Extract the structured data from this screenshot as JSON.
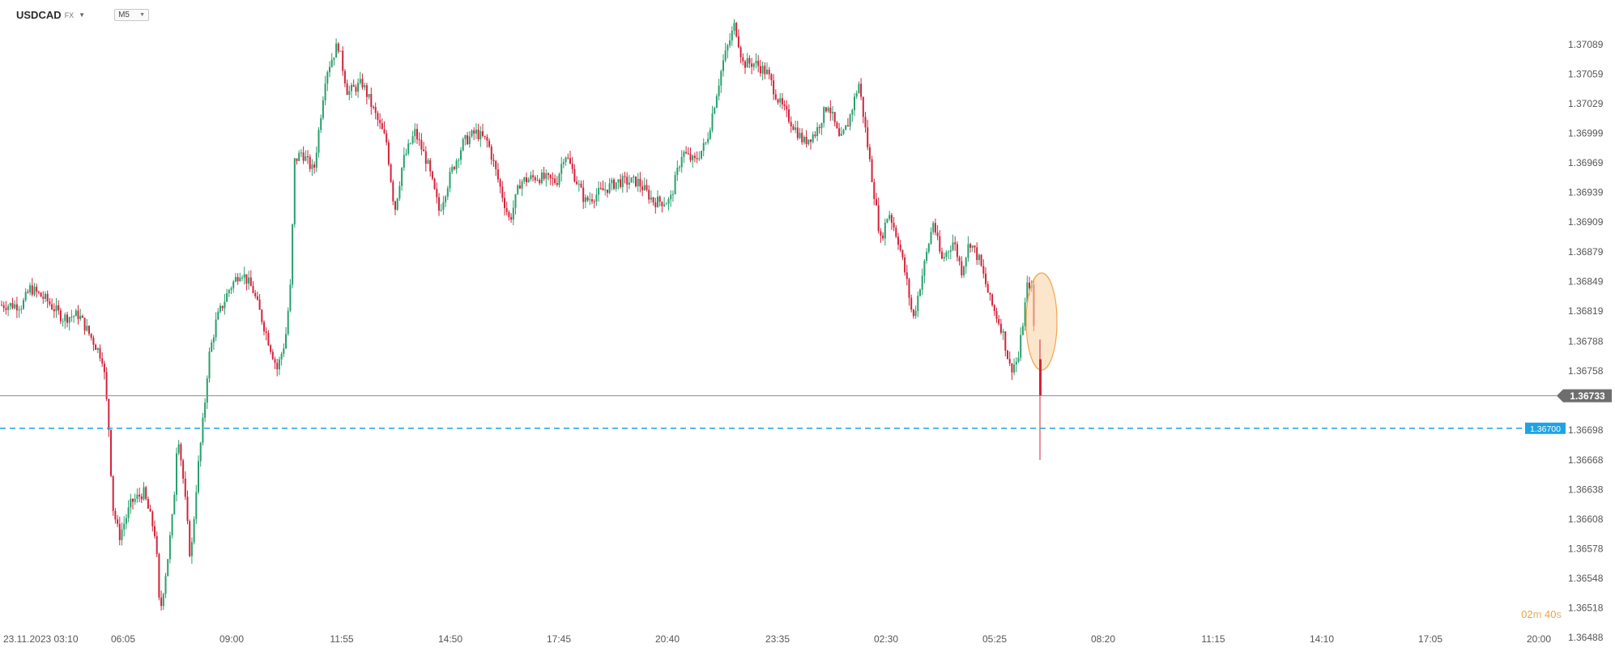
{
  "header": {
    "symbol": "USDCAD",
    "market": "FX",
    "timeframe": "M5"
  },
  "countdown": {
    "minutes": "02",
    "minutes_unit": "m",
    "seconds": "40",
    "seconds_unit": "s"
  },
  "colors": {
    "up": "#27a06b",
    "down": "#d3233b",
    "price_line": "#8c8c8c",
    "price_tag": "#6e6e6e",
    "level_line": "#1ea3e6",
    "level_tag": "#1ea3e6",
    "highlight_fill": "#f9d6a8",
    "highlight_stroke": "#f3a54d"
  },
  "chart_data": {
    "type": "candlestick",
    "instrument": "USDCAD",
    "timeframe": "M5",
    "y_ticks": [
      "1.37089",
      "1.37059",
      "1.37029",
      "1.36999",
      "1.36969",
      "1.36939",
      "1.36909",
      "1.36879",
      "1.36849",
      "1.36819",
      "1.36788",
      "1.36758",
      "1.36698",
      "1.36668",
      "1.36638",
      "1.36608",
      "1.36578",
      "1.36548",
      "1.36518",
      "1.36488"
    ],
    "ylim": [
      1.36488,
      1.3712
    ],
    "x_ticks": [
      "23.11.2023  03:10",
      "06:05",
      "09:00",
      "11:55",
      "14:50",
      "17:45",
      "20:40",
      "23:35",
      "02:30",
      "05:25",
      "08:20",
      "11:15",
      "14:10",
      "17:05",
      "20:00"
    ],
    "current_price": {
      "label": "1.36733",
      "value": 1.36733
    },
    "level": {
      "label": "1.36700",
      "value": 1.367
    },
    "highlight": "ellipse around the last candle",
    "path_anchors": [
      [
        0,
        1.36825
      ],
      [
        30,
        1.36825
      ],
      [
        40,
        1.36842
      ],
      [
        60,
        1.3683
      ],
      [
        80,
        1.36812
      ],
      [
        100,
        1.36815
      ],
      [
        110,
        1.368
      ],
      [
        130,
        1.3677
      ],
      [
        137,
        1.367
      ],
      [
        142,
        1.3662
      ],
      [
        150,
        1.3659
      ],
      [
        165,
        1.36625
      ],
      [
        180,
        1.36635
      ],
      [
        195,
        1.3659
      ],
      [
        200,
        1.3651
      ],
      [
        210,
        1.3657
      ],
      [
        217,
        1.3662
      ],
      [
        222,
        1.367
      ],
      [
        230,
        1.3664
      ],
      [
        238,
        1.36565
      ],
      [
        246,
        1.3665
      ],
      [
        255,
        1.3672
      ],
      [
        260,
        1.3677
      ],
      [
        270,
        1.3681
      ],
      [
        285,
        1.3684
      ],
      [
        300,
        1.3686
      ],
      [
        315,
        1.3684
      ],
      [
        330,
        1.368
      ],
      [
        345,
        1.3676
      ],
      [
        355,
        1.3679
      ],
      [
        362,
        1.3685
      ],
      [
        366,
        1.3697
      ],
      [
        375,
        1.3698
      ],
      [
        390,
        1.3696
      ],
      [
        405,
        1.3706
      ],
      [
        420,
        1.3709
      ],
      [
        432,
        1.3704
      ],
      [
        450,
        1.3705
      ],
      [
        465,
        1.3702
      ],
      [
        480,
        1.3699
      ],
      [
        490,
        1.3692
      ],
      [
        500,
        1.3697
      ],
      [
        515,
        1.37
      ],
      [
        530,
        1.3697
      ],
      [
        545,
        1.3692
      ],
      [
        560,
        1.3696
      ],
      [
        575,
        1.3699
      ],
      [
        590,
        1.37
      ],
      [
        605,
        1.3699
      ],
      [
        615,
        1.3696
      ],
      [
        625,
        1.3693
      ],
      [
        632,
        1.3691
      ],
      [
        645,
        1.3695
      ],
      [
        665,
        1.36955
      ],
      [
        690,
        1.3695
      ],
      [
        700,
        1.3698
      ],
      [
        710,
        1.3696
      ],
      [
        725,
        1.3693
      ],
      [
        745,
        1.3694
      ],
      [
        765,
        1.3695
      ],
      [
        790,
        1.3695
      ],
      [
        810,
        1.3693
      ],
      [
        830,
        1.3693
      ],
      [
        845,
        1.3698
      ],
      [
        860,
        1.3697
      ],
      [
        875,
        1.3699
      ],
      [
        885,
        1.3703
      ],
      [
        895,
        1.3707
      ],
      [
        910,
        1.3711
      ],
      [
        920,
        1.3707
      ],
      [
        935,
        1.3707
      ],
      [
        950,
        1.3706
      ],
      [
        965,
        1.3703
      ],
      [
        980,
        1.3701
      ],
      [
        995,
        1.3699
      ],
      [
        1010,
        1.37
      ],
      [
        1025,
        1.3703
      ],
      [
        1040,
        1.3699
      ],
      [
        1050,
        1.3701
      ],
      [
        1063,
        1.3705
      ],
      [
        1070,
        1.3701
      ],
      [
        1080,
        1.3695
      ],
      [
        1090,
        1.3689
      ],
      [
        1100,
        1.3692
      ],
      [
        1112,
        1.3689
      ],
      [
        1122,
        1.3685
      ],
      [
        1130,
        1.3681
      ],
      [
        1140,
        1.3685
      ],
      [
        1155,
        1.3691
      ],
      [
        1165,
        1.3687
      ],
      [
        1180,
        1.3689
      ],
      [
        1190,
        1.3686
      ],
      [
        1200,
        1.3689
      ],
      [
        1212,
        1.3687
      ],
      [
        1225,
        1.3683
      ],
      [
        1240,
        1.368
      ],
      [
        1250,
        1.3676
      ],
      [
        1260,
        1.3677
      ],
      [
        1272,
        1.3685
      ],
      [
        1277,
        1.3684
      ],
      [
        1281,
        1.3677
      ],
      [
        1284,
        1.36733
      ]
    ],
    "final_candle": {
      "open": 1.3677,
      "high": 1.3679,
      "low": 1.36668,
      "close": 1.36733
    }
  }
}
